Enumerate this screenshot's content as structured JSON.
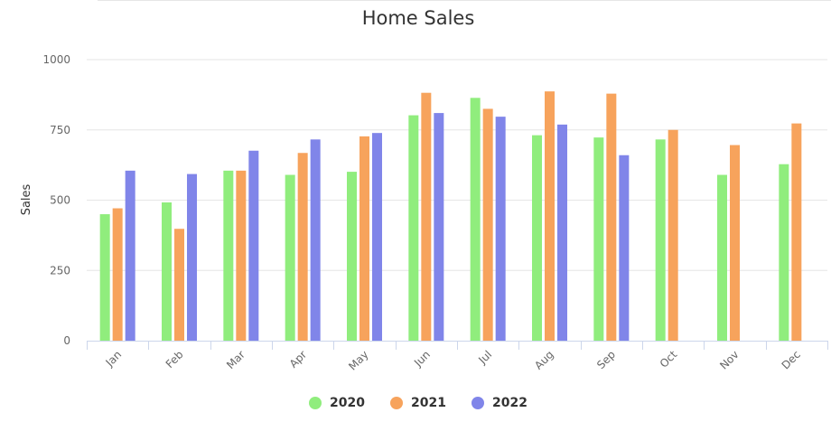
{
  "chart_data": {
    "type": "bar",
    "title": "Home Sales",
    "xlabel": "",
    "ylabel": "Sales",
    "ylim": [
      0,
      1000
    ],
    "yticks": [
      "0",
      "250",
      "500",
      "750",
      "1000"
    ],
    "categories": [
      "Jan",
      "Feb",
      "Mar",
      "Apr",
      "May",
      "Jun",
      "Jul",
      "Aug",
      "Sep",
      "Oct",
      "Nov",
      "Dec"
    ],
    "series": [
      {
        "name": "2020",
        "color": "#90ed7d",
        "values": [
          450,
          492,
          605,
          590,
          601,
          802,
          864,
          731,
          723,
          716,
          590,
          628
        ]
      },
      {
        "name": "2021",
        "color": "#f7a35c",
        "values": [
          471,
          398,
          605,
          668,
          727,
          882,
          825,
          887,
          879,
          750,
          696,
          773
        ]
      },
      {
        "name": "2022",
        "color": "#8085e9",
        "values": [
          605,
          593,
          676,
          716,
          739,
          810,
          797,
          769,
          660,
          null,
          null,
          null
        ]
      }
    ],
    "grid": true,
    "legend_position": "bottom-center"
  }
}
